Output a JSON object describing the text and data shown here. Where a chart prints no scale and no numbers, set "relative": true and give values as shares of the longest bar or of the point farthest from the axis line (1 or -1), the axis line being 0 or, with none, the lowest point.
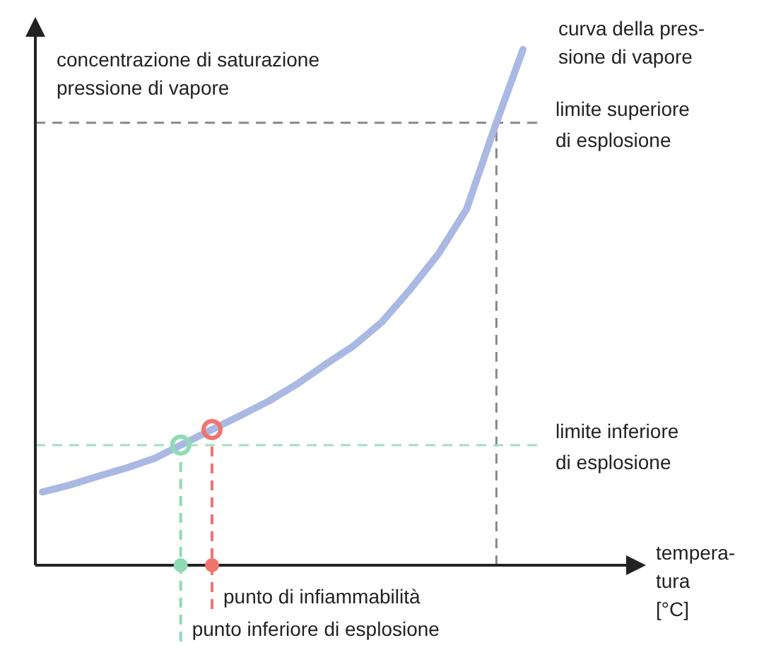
{
  "chart_data": {
    "type": "line",
    "relative": true,
    "ylabel": "concentrazione di saturazione\npressione di vapore",
    "xlabel": "tempera-\ntura\n[°C]",
    "categories": [
      null,
      null,
      null,
      null,
      null,
      null,
      null,
      null,
      null,
      null,
      null,
      null,
      null,
      null,
      null,
      null,
      null,
      null,
      null,
      null,
      null
    ],
    "series": [
      {
        "name": "curva della pres-\nsione di vapore",
        "color": "#a9b9e3",
        "values": [
          0.142,
          0.156,
          0.173,
          0.189,
          0.208,
          0.236,
          0.263,
          0.29,
          0.318,
          0.351,
          0.389,
          0.425,
          0.471,
          0.534,
          0.603,
          0.69,
          0.849,
          1,
          null,
          null,
          null
        ]
      }
    ],
    "ref_lines": [
      {
        "axis": "y",
        "value": 0.858,
        "label": "limite superiore\ndi esplosione",
        "color": "#888888",
        "line_style": "dashed"
      },
      {
        "axis": "y",
        "value": 0.233,
        "label": "limite inferiore\ndi esplosione",
        "color": "#9fe0c0",
        "line_style": "dashed"
      }
    ],
    "annotations": [
      "punto di infiammabilità",
      "punto inferiore di esplosione"
    ]
  }
}
